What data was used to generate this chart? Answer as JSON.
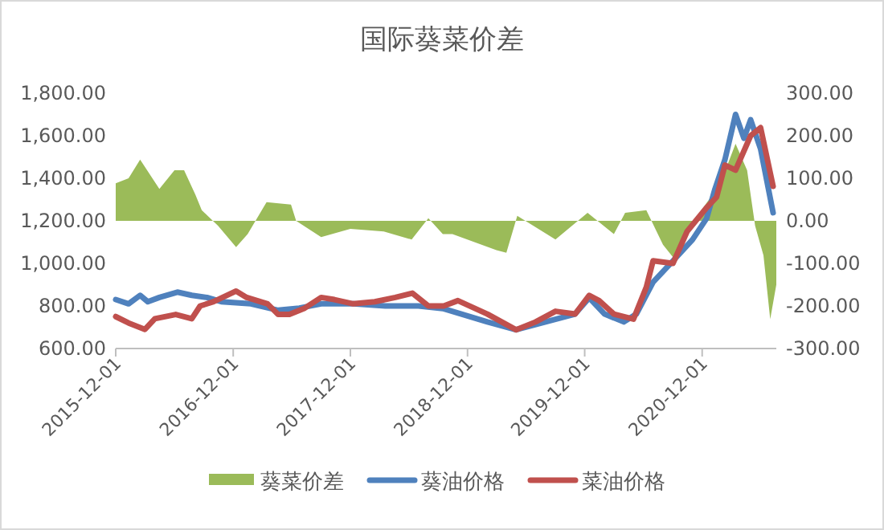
{
  "chart_data": {
    "type": "line",
    "title": "国际葵菜价差",
    "xlim": [
      "2015-12-01",
      "2021-07-20"
    ],
    "xticks": [
      "2015-12-01",
      "2016-12-01",
      "2017-12-01",
      "2018-12-01",
      "2019-12-01",
      "2020-12-01"
    ],
    "ylim": [
      600,
      1800
    ],
    "yticks": [
      {
        "value": 600,
        "label": "600.00"
      },
      {
        "value": 800,
        "label": "800.00"
      },
      {
        "value": 1000,
        "label": "1,000.00"
      },
      {
        "value": 1200,
        "label": "1,200.00"
      },
      {
        "value": 1400,
        "label": "1,400.00"
      },
      {
        "value": 1600,
        "label": "1,600.00"
      },
      {
        "value": 1800,
        "label": "1,800.00"
      }
    ],
    "y2lim": [
      -300,
      300
    ],
    "y2ticks": [
      {
        "value": -300,
        "label": "-300.00"
      },
      {
        "value": -200,
        "label": "-200.00"
      },
      {
        "value": -100,
        "label": "-100.00"
      },
      {
        "value": 0,
        "label": "0.00"
      },
      {
        "value": 100,
        "label": "100.00"
      },
      {
        "value": 200,
        "label": "200.00"
      },
      {
        "value": 300,
        "label": "300.00"
      }
    ],
    "legend": "bottom",
    "grid": false,
    "series": [
      {
        "name": "葵菜价差",
        "type": "area",
        "axis": "y2",
        "color": "#9bbb59",
        "x": [
          "2015-12-01",
          "2016-01-10",
          "2016-02-15",
          "2016-04-15",
          "2016-06-01",
          "2016-07-01",
          "2016-08-05",
          "2016-08-25",
          "2016-10-15",
          "2016-12-10",
          "2017-01-15",
          "2017-03-15",
          "2017-05-30",
          "2017-06-15",
          "2017-09-01",
          "2017-12-01",
          "2018-03-15",
          "2018-06-10",
          "2018-08-01",
          "2018-09-15",
          "2018-10-15",
          "2019-03-01",
          "2019-04-01",
          "2019-05-05",
          "2019-09-01",
          "2019-12-10",
          "2020-03-01",
          "2020-04-05",
          "2020-06-10",
          "2020-08-01",
          "2020-09-10",
          "2020-11-05",
          "2020-12-28",
          "2021-02-05",
          "2021-03-15",
          "2021-04-20",
          "2021-05-15",
          "2021-06-10",
          "2021-07-01",
          "2021-07-20"
        ],
        "values": [
          88,
          100,
          144,
          75,
          119,
          119,
          62,
          25,
          -12,
          -62,
          -31,
          44,
          38,
          0,
          -38,
          -19,
          -25,
          -44,
          6,
          -31,
          -31,
          -69,
          -75,
          12,
          -44,
          19,
          -31,
          19,
          25,
          -56,
          -94,
          0,
          56,
          106,
          181,
          119,
          -12,
          -81,
          -231,
          -150
        ]
      },
      {
        "name": "葵油价格",
        "color": "#4f81bd",
        "x": [
          "2015-12-01",
          "2016-01-10",
          "2016-02-15",
          "2016-03-10",
          "2016-04-15",
          "2016-06-10",
          "2016-07-25",
          "2016-09-10",
          "2016-10-25",
          "2017-01-25",
          "2017-04-20",
          "2017-06-25",
          "2017-09-01",
          "2017-12-10",
          "2018-03-20",
          "2018-07-01",
          "2018-09-15",
          "2019-02-01",
          "2019-05-01",
          "2019-08-01",
          "2019-11-01",
          "2019-12-15",
          "2020-02-01",
          "2020-04-01",
          "2020-05-10",
          "2020-07-01",
          "2020-09-01",
          "2020-11-01",
          "2020-12-15",
          "2021-01-10",
          "2021-02-10",
          "2021-03-15",
          "2021-04-10",
          "2021-05-01",
          "2021-06-01",
          "2021-07-10"
        ],
        "values": [
          830,
          810,
          850,
          820,
          840,
          865,
          850,
          840,
          820,
          810,
          780,
          790,
          810,
          810,
          800,
          800,
          788,
          725,
          688,
          725,
          762,
          838,
          762,
          725,
          762,
          912,
          1012,
          1112,
          1212,
          1350,
          1488,
          1700,
          1588,
          1675,
          1538,
          1238
        ]
      },
      {
        "name": "菜油价格",
        "color": "#c0504d",
        "x": [
          "2015-12-01",
          "2016-01-10",
          "2016-03-01",
          "2016-04-01",
          "2016-06-05",
          "2016-07-25",
          "2016-08-20",
          "2016-10-01",
          "2016-12-10",
          "2017-01-12",
          "2017-03-18",
          "2017-04-20",
          "2017-05-25",
          "2017-07-12",
          "2017-09-01",
          "2017-10-12",
          "2017-12-10",
          "2018-02-15",
          "2018-04-20",
          "2018-06-12",
          "2018-08-01",
          "2018-09-18",
          "2018-11-01",
          "2019-02-01",
          "2019-05-01",
          "2019-07-01",
          "2019-09-01",
          "2019-11-01",
          "2019-12-15",
          "2020-01-15",
          "2020-03-01",
          "2020-05-01",
          "2020-06-10",
          "2020-07-01",
          "2020-09-01",
          "2020-10-15",
          "2020-12-15",
          "2021-01-15",
          "2021-02-10",
          "2021-03-15",
          "2021-05-01",
          "2021-06-01",
          "2021-07-10"
        ],
        "values": [
          750,
          720,
          690,
          740,
          760,
          740,
          800,
          820,
          870,
          840,
          810,
          760,
          760,
          790,
          840,
          830,
          810,
          820,
          840,
          860,
          800,
          800,
          825,
          762,
          688,
          725,
          775,
          762,
          850,
          825,
          762,
          738,
          888,
          1012,
          1000,
          1150,
          1262,
          1312,
          1462,
          1438,
          1600,
          1638,
          1362
        ]
      }
    ]
  }
}
